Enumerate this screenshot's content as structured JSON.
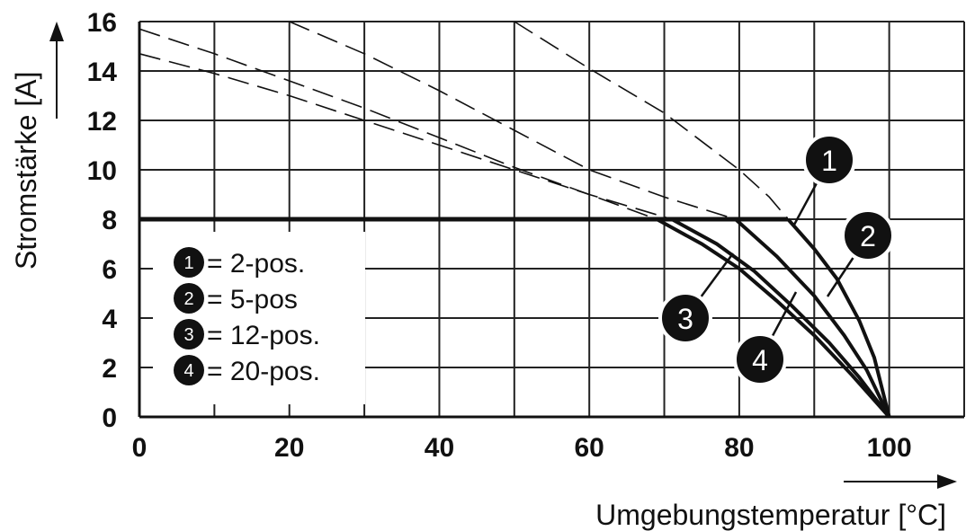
{
  "chart_data": {
    "type": "line",
    "title": "",
    "xlabel": "Umgebungstemperatur [°C]",
    "ylabel": "Stromstärke [A]",
    "xlim": [
      0,
      110
    ],
    "ylim": [
      0,
      16
    ],
    "x_ticks": [
      "0",
      "20",
      "40",
      "60",
      "80",
      "100"
    ],
    "y_ticks": [
      "0",
      "2",
      "4",
      "6",
      "8",
      "10",
      "12",
      "14",
      "16"
    ],
    "grid": true,
    "rated_current_limit": 8,
    "legend_placement": "lower-left",
    "legend": [
      {
        "num": "1",
        "text": "= 2-pos."
      },
      {
        "num": "2",
        "text": "= 5-pos"
      },
      {
        "num": "3",
        "text": "= 12-pos."
      },
      {
        "num": "4",
        "text": "= 20-pos."
      }
    ],
    "series": [
      {
        "name": "1",
        "label": "2-pos.",
        "derating": [
          [
            50,
            16
          ],
          [
            60,
            14.1
          ],
          [
            70,
            12.3
          ],
          [
            80,
            10.0
          ],
          [
            84,
            8.9
          ],
          [
            86.5,
            8
          ],
          [
            90,
            6.8
          ],
          [
            93,
            5.6
          ],
          [
            96,
            3.9
          ],
          [
            98,
            2.4
          ],
          [
            100,
            0
          ]
        ]
      },
      {
        "name": "2",
        "label": "5-pos",
        "derating": [
          [
            20,
            16
          ],
          [
            30,
            14.7
          ],
          [
            40,
            13.2
          ],
          [
            50,
            11.6
          ],
          [
            60,
            10.0
          ],
          [
            70,
            8.9
          ],
          [
            79.5,
            8
          ],
          [
            85,
            6.5
          ],
          [
            90,
            4.9
          ],
          [
            94,
            3.3
          ],
          [
            97,
            1.9
          ],
          [
            100,
            0
          ]
        ]
      },
      {
        "name": "3",
        "label": "12-pos.",
        "derating": [
          [
            0,
            15.7
          ],
          [
            10,
            14.7
          ],
          [
            20,
            13.6
          ],
          [
            30,
            12.5
          ],
          [
            40,
            11.3
          ],
          [
            50,
            10.1
          ],
          [
            60,
            9.0
          ],
          [
            69,
            8
          ],
          [
            75,
            7.0
          ],
          [
            80,
            6.0
          ],
          [
            85,
            4.7
          ],
          [
            90,
            3.3
          ],
          [
            95,
            1.7
          ],
          [
            100,
            0
          ]
        ]
      },
      {
        "name": "4",
        "label": "20-pos.",
        "derating": [
          [
            0,
            14.7
          ],
          [
            10,
            13.9
          ],
          [
            20,
            13.0
          ],
          [
            30,
            12.0
          ],
          [
            40,
            11.0
          ],
          [
            50,
            10.0
          ],
          [
            60,
            9.0
          ],
          [
            71,
            8
          ],
          [
            77,
            7.0
          ],
          [
            82,
            5.9
          ],
          [
            87,
            4.5
          ],
          [
            92,
            3.0
          ],
          [
            96,
            1.6
          ],
          [
            100,
            0
          ]
        ]
      }
    ]
  }
}
